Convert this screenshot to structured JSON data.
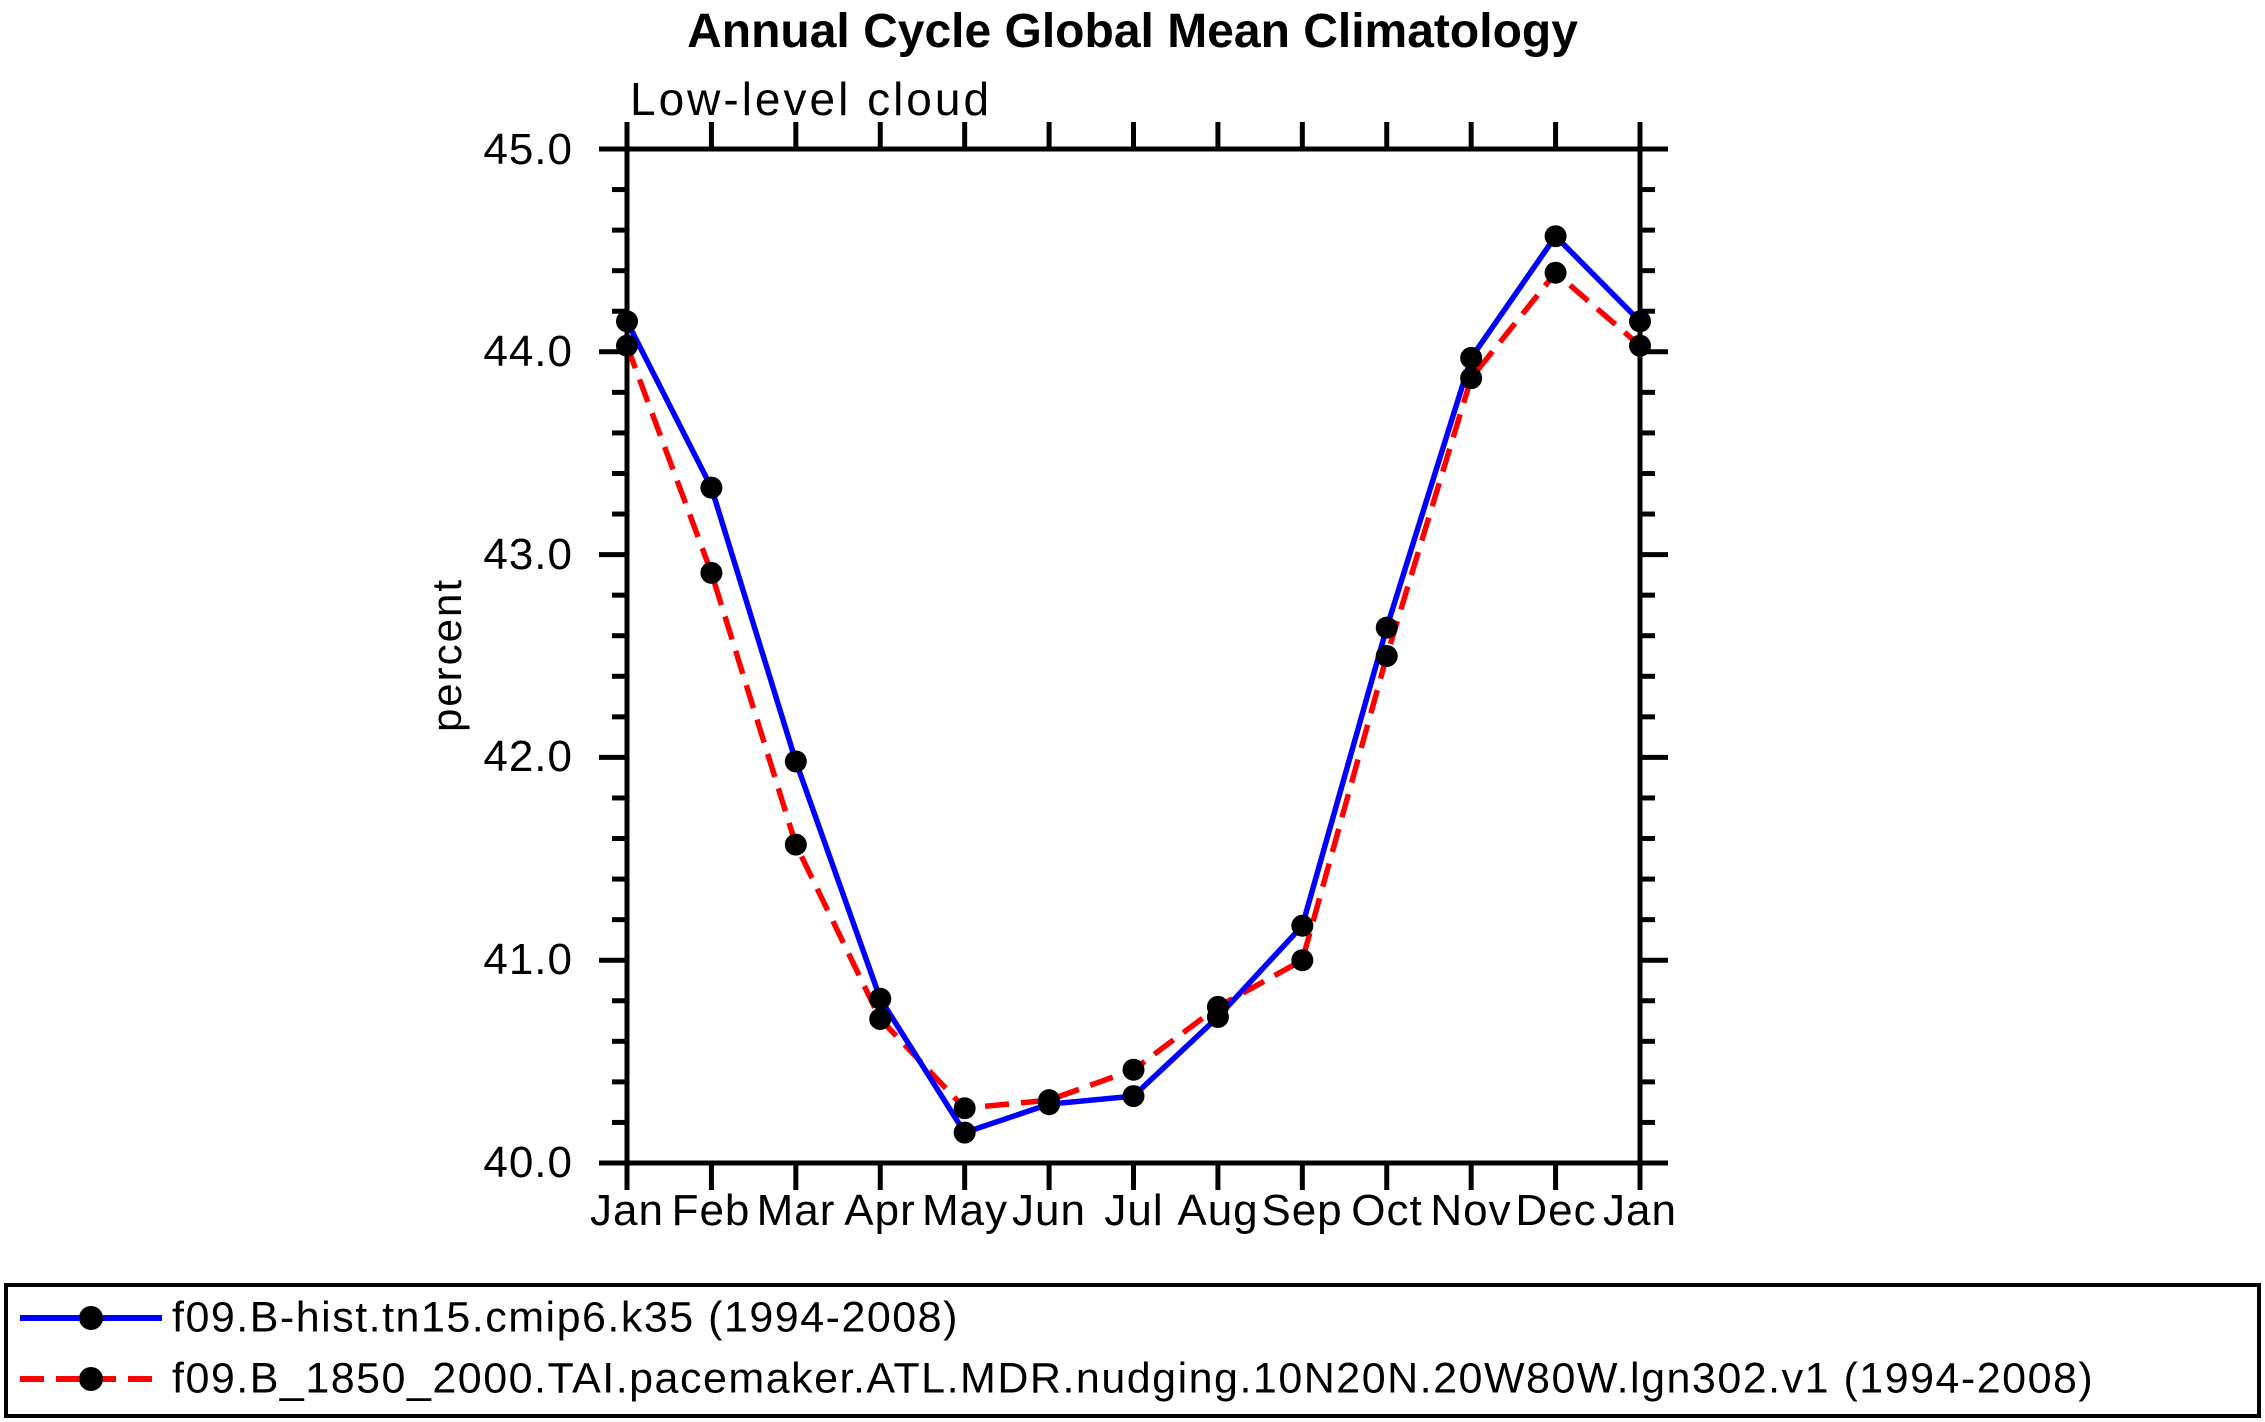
{
  "header": {
    "title": "Annual Cycle Global Mean Climatology"
  },
  "chart_data": {
    "type": "line",
    "title": "Annual Cycle Global Mean Climatology",
    "subtitle": "Low-level cloud",
    "xlabel": "",
    "ylabel": "percent",
    "categories": [
      "Jan",
      "Feb",
      "Mar",
      "Apr",
      "May",
      "Jun",
      "Jul",
      "Aug",
      "Sep",
      "Oct",
      "Nov",
      "Dec",
      "Jan"
    ],
    "y_tick_labels": [
      "45.0",
      "44.0",
      "43.0",
      "42.0",
      "41.0",
      "40.0"
    ],
    "ylim": [
      40.0,
      45.0
    ],
    "y_major_step": 1.0,
    "y_minor_step": 0.2,
    "grid": false,
    "legend_position": "bottom",
    "marker": "filled-circle",
    "marker_color": "#000000",
    "series": [
      {
        "name": "f09.B-hist.tn15.cmip6.k35 (1994-2008)",
        "color": "#0000ff",
        "style": "solid",
        "values": [
          44.15,
          43.33,
          41.98,
          40.81,
          40.15,
          40.29,
          40.33,
          40.72,
          41.17,
          42.64,
          43.97,
          44.57,
          44.15
        ]
      },
      {
        "name": "f09.B_1850_2000.TAI.pacemaker.ATL.MDR.nudging.10N20N.20W80W.lgn302.v1 (1994-2008)",
        "color": "#ff0000",
        "style": "dashed",
        "values": [
          44.03,
          42.91,
          41.57,
          40.71,
          40.27,
          40.31,
          40.46,
          40.77,
          41.0,
          42.5,
          43.87,
          44.39,
          44.03
        ]
      }
    ]
  }
}
